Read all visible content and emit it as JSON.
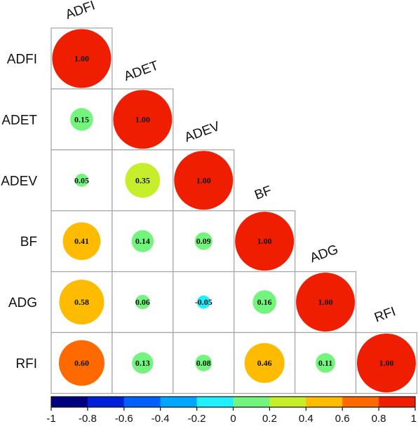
{
  "chart_data": {
    "type": "heatmap",
    "variables": [
      "ADFI",
      "ADET",
      "ADEV",
      "BF",
      "ADG",
      "RFI"
    ],
    "matrix": [
      [
        1.0
      ],
      [
        0.15,
        1.0
      ],
      [
        0.05,
        0.35,
        1.0
      ],
      [
        0.41,
        0.14,
        0.09,
        1.0
      ],
      [
        0.58,
        0.06,
        -0.05,
        0.16,
        1.0
      ],
      [
        0.6,
        0.13,
        0.08,
        0.46,
        0.11,
        1.0
      ]
    ],
    "value_labels": [
      [
        "1.00"
      ],
      [
        "0.15",
        "1.00"
      ],
      [
        "0.05",
        "0.35",
        "1.00"
      ],
      [
        "0.41",
        "0.14",
        "0.09",
        "1.00"
      ],
      [
        "0.58",
        "0.06",
        "-0.05",
        "0.16",
        "1.00"
      ],
      [
        "0.60",
        "0.13",
        "0.08",
        "0.46",
        "0.11",
        "1.00"
      ]
    ],
    "colorbar": {
      "range": [
        -1,
        1
      ],
      "tick_labels": [
        "-1",
        "-0.8",
        "-0.6",
        "-0.4",
        "-0.2",
        "0",
        "0.2",
        "0.4",
        "0.6",
        "0.8",
        "1"
      ],
      "colors": [
        "#00007f",
        "#0020d8",
        "#0060ff",
        "#00a6ff",
        "#1ff0ff",
        "#73f57d",
        "#c6ee2a",
        "#ffbb00",
        "#ff6a00",
        "#f01e00"
      ]
    },
    "title": "",
    "xlabel": "",
    "ylabel": ""
  }
}
